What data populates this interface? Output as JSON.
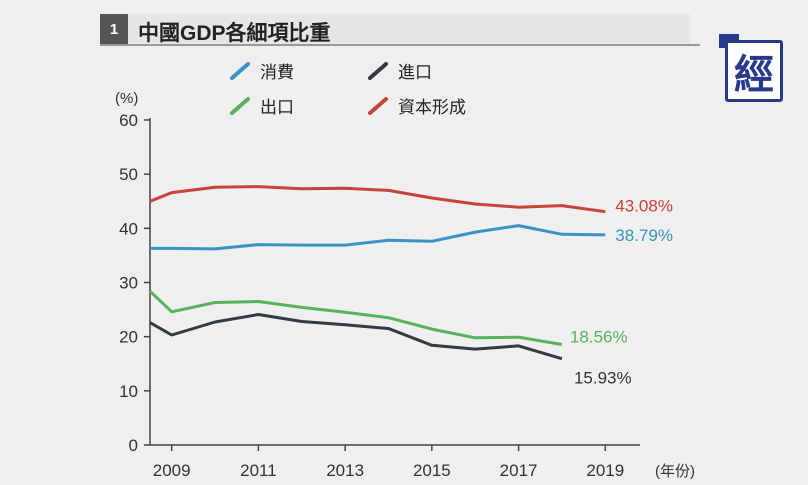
{
  "header": {
    "number": "1",
    "title": "中國GDP各細項比重",
    "logo_text": "經"
  },
  "chart_data": {
    "type": "line",
    "title": "中國GDP各細項比重",
    "ylabel": "(%)",
    "xlabel": "(年份)",
    "ylim": [
      0,
      60
    ],
    "xlim": [
      2008.5,
      2019.8
    ],
    "yticks": [
      0,
      10,
      20,
      30,
      40,
      50,
      60
    ],
    "xticks": [
      2009,
      2011,
      2013,
      2015,
      2017,
      2019
    ],
    "legend_placement": "top",
    "series": [
      {
        "name": "消費",
        "color": "#3a93c3",
        "x": [
          2008.5,
          2009,
          2010,
          2011,
          2012,
          2013,
          2014,
          2015,
          2016,
          2017,
          2018,
          2019
        ],
        "values": [
          36.3,
          36.3,
          36.2,
          37.0,
          36.9,
          36.9,
          37.8,
          37.6,
          39.3,
          40.5,
          38.9,
          38.79
        ],
        "end_label": "38.79%"
      },
      {
        "name": "進口",
        "color": "#333a44",
        "x": [
          2008.5,
          2009,
          2010,
          2011,
          2012,
          2013,
          2014,
          2015,
          2016,
          2017,
          2018
        ],
        "values": [
          22.6,
          20.3,
          22.7,
          24.1,
          22.8,
          22.2,
          21.5,
          18.4,
          17.7,
          18.3,
          15.93
        ],
        "end_label": "15.93%"
      },
      {
        "name": "出口",
        "color": "#58b25a",
        "x": [
          2008.5,
          2009,
          2010,
          2011,
          2012,
          2013,
          2014,
          2015,
          2016,
          2017,
          2018
        ],
        "values": [
          28.4,
          24.6,
          26.3,
          26.5,
          25.4,
          24.5,
          23.5,
          21.4,
          19.8,
          19.9,
          18.56
        ],
        "end_label": "18.56%"
      },
      {
        "name": "資本形成",
        "color": "#c9423a",
        "x": [
          2008.5,
          2009,
          2010,
          2011,
          2012,
          2013,
          2014,
          2015,
          2016,
          2017,
          2018,
          2019
        ],
        "values": [
          45.0,
          46.6,
          47.6,
          47.7,
          47.3,
          47.4,
          47.0,
          45.6,
          44.5,
          43.9,
          44.2,
          43.08
        ],
        "end_label": "43.08%"
      }
    ]
  }
}
